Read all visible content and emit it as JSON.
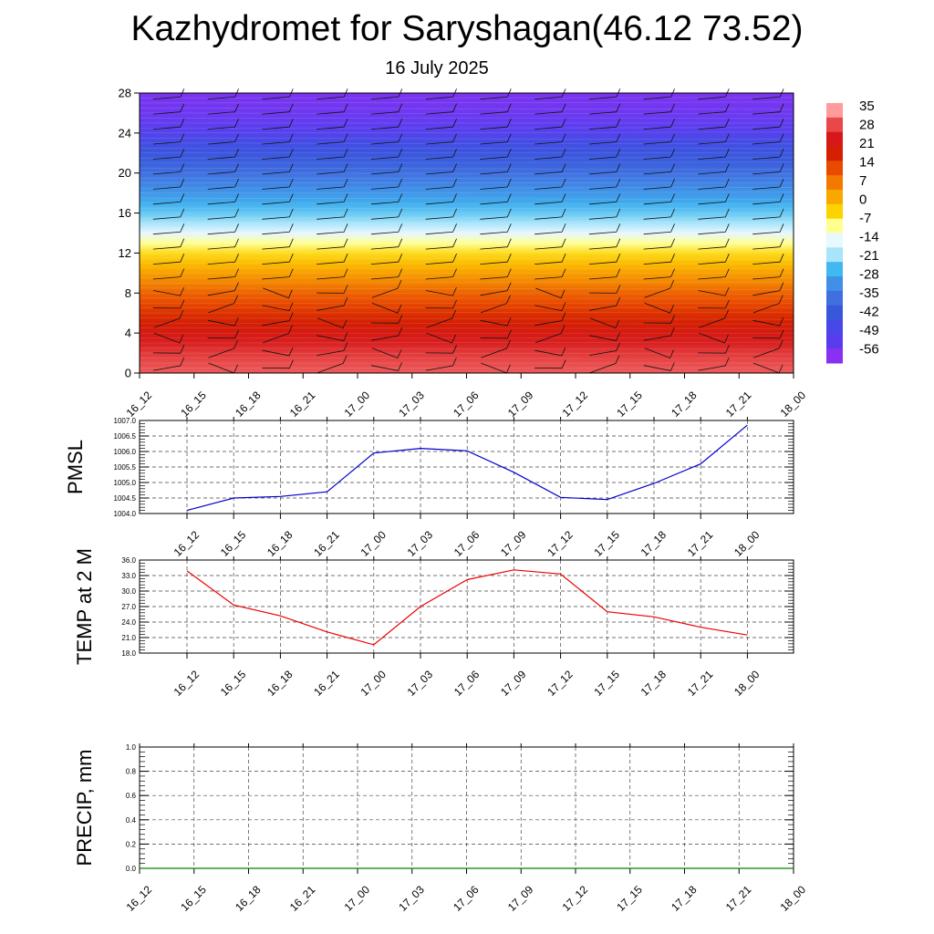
{
  "title": "Kazhydromet for Saryshagan(46.12 73.52)",
  "subtitle": "16 July 2025",
  "chart_data": [
    {
      "type": "heatmap",
      "name": "temperature-height-crosssection",
      "y_ticks": [
        "0",
        "4",
        "8",
        "12",
        "16",
        "20",
        "24",
        "28"
      ],
      "ylim": [
        0,
        28
      ],
      "x_ticks": [
        "16_12",
        "16_15",
        "16_18",
        "16_21",
        "17_00",
        "17_03",
        "17_06",
        "17_09",
        "17_12",
        "17_15",
        "17_18",
        "17_21",
        "18_00"
      ],
      "colorbar_labels": [
        "35",
        "28",
        "21",
        "14",
        "7",
        "0",
        "-7",
        "-14",
        "-21",
        "-28",
        "-35",
        "-42",
        "-49",
        "-56"
      ],
      "colorbar_colors": [
        "#ff9b9b",
        "#e84848",
        "#d61818",
        "#d42000",
        "#e84a00",
        "#f27a00",
        "#f9a800",
        "#fcd200",
        "#ffff90",
        "#e8f8ff",
        "#a8e4fa",
        "#40b8f0",
        "#4090e8",
        "#4070e0",
        "#3858dc",
        "#4848e8",
        "#5a3cf0",
        "#8a30f0"
      ],
      "level_values": [
        0,
        1,
        2,
        3,
        4,
        5,
        6,
        7,
        8,
        9,
        10,
        11,
        12,
        13,
        14,
        15,
        16,
        17,
        18,
        19,
        20,
        21,
        22,
        23,
        24,
        25,
        26,
        27,
        28
      ],
      "level_temps": [
        31,
        30,
        28,
        25,
        22,
        18,
        14,
        10,
        7,
        3,
        0,
        -3,
        -6,
        -10,
        -14,
        -18,
        -22,
        -26,
        -30,
        -34,
        -38,
        -42,
        -45,
        -48,
        -52,
        -54,
        -56,
        -57,
        -58
      ],
      "wind_barbs_shown": true
    },
    {
      "type": "line",
      "ylabel": "PMSL",
      "categories": [
        "16_12",
        "16_15",
        "16_18",
        "16_21",
        "17_00",
        "17_03",
        "17_06",
        "17_09",
        "17_12",
        "17_15",
        "17_18",
        "17_21",
        "18_00"
      ],
      "y_ticks": [
        "1004.0",
        "1004.5",
        "1005.0",
        "1005.5",
        "1006.0",
        "1006.5",
        "1007.0"
      ],
      "ylim": [
        1004.0,
        1007.0
      ],
      "values": [
        1004.1,
        1004.5,
        1004.55,
        1004.7,
        1005.95,
        1006.1,
        1006.02,
        1005.33,
        1004.52,
        1004.45,
        1004.97,
        1005.6,
        1006.85
      ],
      "color": "#0000cc",
      "grid": true
    },
    {
      "type": "line",
      "ylabel": "TEMP at 2 M",
      "categories": [
        "16_12",
        "16_15",
        "16_18",
        "16_21",
        "17_00",
        "17_03",
        "17_06",
        "17_09",
        "17_12",
        "17_15",
        "17_18",
        "17_21",
        "18_00"
      ],
      "y_ticks": [
        "18.0",
        "21.0",
        "24.0",
        "27.0",
        "30.0",
        "33.0",
        "36.0"
      ],
      "ylim": [
        18.0,
        36.0
      ],
      "values": [
        33.9,
        27.3,
        25.2,
        22.1,
        19.6,
        27.0,
        32.2,
        34.1,
        33.3,
        26.0,
        25.0,
        23.0,
        21.5
      ],
      "color": "#ee0000",
      "grid": true
    },
    {
      "type": "line",
      "ylabel": "PRECIP, mm",
      "x_ticks": [
        "16_12",
        "16_15",
        "16_18",
        "16_21",
        "17_00",
        "17_03",
        "17_06",
        "17_09",
        "17_12",
        "17_15",
        "17_18",
        "17_21",
        "18_00"
      ],
      "y_ticks": [
        "0.0",
        "0.2",
        "0.4",
        "0.6",
        "0.8",
        "1.0"
      ],
      "ylim": [
        0.0,
        1.0
      ],
      "values": [
        0,
        0,
        0,
        0,
        0,
        0,
        0,
        0,
        0,
        0,
        0,
        0,
        0
      ],
      "color": "#008800",
      "grid": true
    }
  ]
}
